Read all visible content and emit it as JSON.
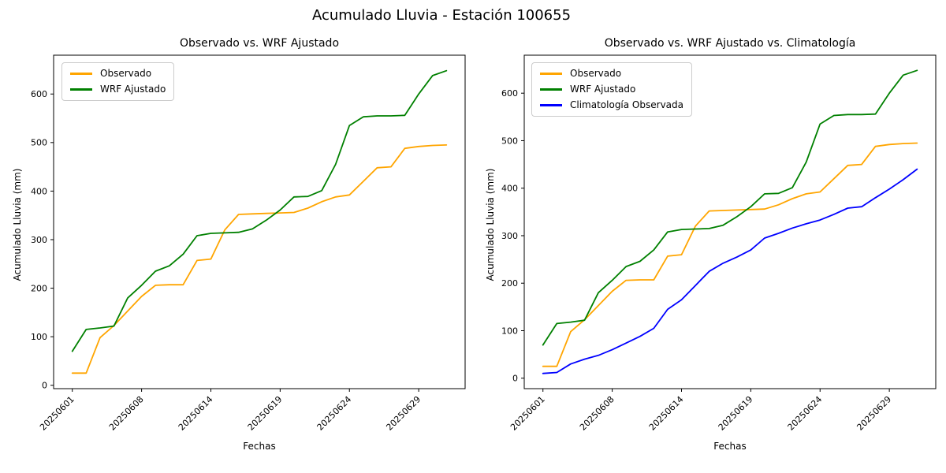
{
  "suptitle": "Acumulado Lluvia - Estación 100655",
  "chart_data": [
    {
      "type": "line",
      "title": "Observado vs. WRF Ajustado",
      "xlabel": "Fechas",
      "ylabel": "Acumulado Lluvia (mm)",
      "x_tick_labels": [
        "20250601",
        "20250608",
        "20250614",
        "20250619",
        "20250624",
        "20250629"
      ],
      "x_tick_indices": [
        0,
        5,
        10,
        15,
        20,
        25
      ],
      "y_ticks": [
        0,
        100,
        200,
        300,
        400,
        500,
        600
      ],
      "ylim": [
        -7,
        680
      ],
      "grid": false,
      "legend_position": "upper left",
      "series": [
        {
          "name": "Observado",
          "color": "#FFA500",
          "values": [
            25,
            25,
            98,
            123,
            153,
            183,
            206,
            207,
            207,
            257,
            260,
            320,
            352,
            353,
            354,
            355,
            356,
            365,
            378,
            388,
            392,
            420,
            448,
            450,
            488,
            492,
            494,
            495
          ]
        },
        {
          "name": "WRF Ajustado",
          "color": "#008000",
          "values": [
            70,
            115,
            118,
            122,
            180,
            206,
            235,
            246,
            270,
            308,
            313,
            314,
            315,
            322,
            340,
            361,
            388,
            389,
            401,
            455,
            535,
            553,
            555,
            555,
            556,
            600,
            638,
            648
          ]
        }
      ]
    },
    {
      "type": "line",
      "title": "Observado vs. WRF Ajustado vs. Climatología",
      "xlabel": "Fechas",
      "ylabel": "Acumulado Lluvia (mm)",
      "x_tick_labels": [
        "20250601",
        "20250608",
        "20250614",
        "20250619",
        "20250624",
        "20250629"
      ],
      "x_tick_indices": [
        0,
        5,
        10,
        15,
        20,
        25
      ],
      "y_ticks": [
        0,
        100,
        200,
        300,
        400,
        500,
        600
      ],
      "ylim": [
        -22,
        680
      ],
      "grid": false,
      "legend_position": "upper left",
      "series": [
        {
          "name": "Observado",
          "color": "#FFA500",
          "values": [
            25,
            25,
            98,
            123,
            153,
            183,
            206,
            207,
            207,
            257,
            260,
            320,
            352,
            353,
            354,
            355,
            356,
            365,
            378,
            388,
            392,
            420,
            448,
            450,
            488,
            492,
            494,
            495
          ]
        },
        {
          "name": "WRF Ajustado",
          "color": "#008000",
          "values": [
            70,
            115,
            118,
            122,
            180,
            206,
            235,
            246,
            270,
            308,
            313,
            314,
            315,
            322,
            340,
            361,
            388,
            389,
            401,
            455,
            535,
            553,
            555,
            555,
            556,
            600,
            638,
            648
          ]
        },
        {
          "name": "Climatología Observada",
          "color": "#0000FF",
          "values": [
            10,
            12,
            30,
            40,
            48,
            60,
            74,
            88,
            105,
            145,
            165,
            195,
            225,
            242,
            255,
            270,
            295,
            305,
            316,
            325,
            333,
            345,
            358,
            361,
            380,
            398,
            418,
            440
          ]
        }
      ]
    }
  ]
}
